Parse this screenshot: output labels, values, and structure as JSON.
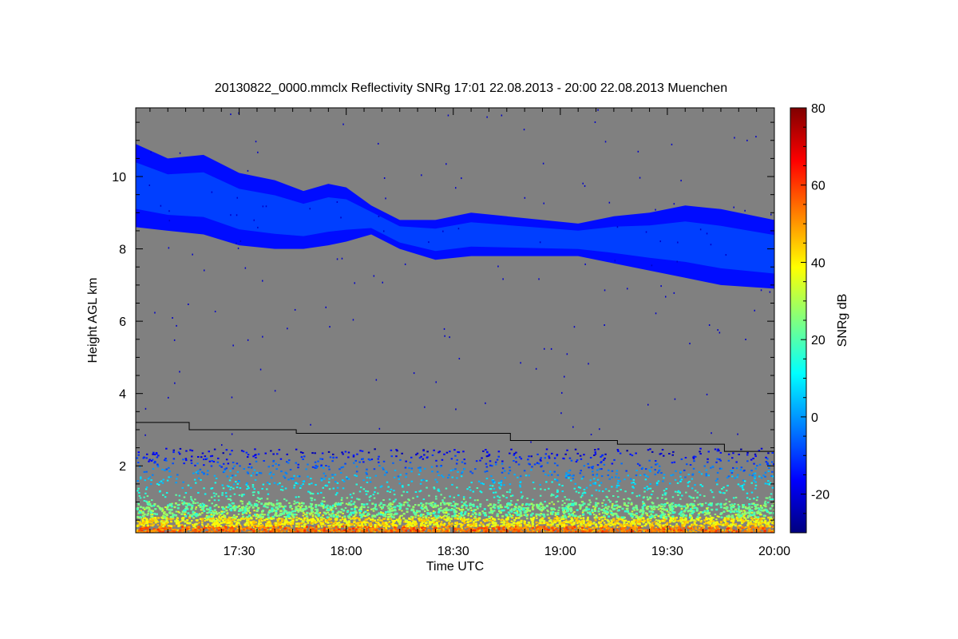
{
  "chart_data": {
    "type": "heatmap",
    "title": "20130822_0000.mmclx Reflectivity SNRg   17:01 22.08.2013 - 20:00 22.08.2013 Muenchen",
    "xlabel": "Time UTC",
    "ylabel": "Height AGL km",
    "colorbar_label": "SNRg dB",
    "x_range_minutes_utc": [
      1021,
      1200
    ],
    "x_ticks": [
      {
        "label": "17:30",
        "minute": 1050
      },
      {
        "label": "18:00",
        "minute": 1080
      },
      {
        "label": "18:30",
        "minute": 1110
      },
      {
        "label": "19:00",
        "minute": 1140
      },
      {
        "label": "19:30",
        "minute": 1170
      },
      {
        "label": "20:00",
        "minute": 1200
      }
    ],
    "y_range_km": [
      0.15,
      11.9
    ],
    "y_ticks": [
      2,
      4,
      6,
      8,
      10
    ],
    "colorbar_range_db": [
      -30,
      80
    ],
    "colorbar_ticks": [
      -20,
      0,
      20,
      40,
      60,
      80
    ],
    "background_color": "#808080",
    "colormap": [
      "#00007f",
      "#0000ff",
      "#0080ff",
      "#00ffff",
      "#80ff80",
      "#ffff00",
      "#ff8000",
      "#ff0000",
      "#7f0000"
    ],
    "cloud_band": {
      "snr_typical_db": -10,
      "points": [
        {
          "minute": 1021,
          "top_km": 10.9,
          "base_km": 8.6
        },
        {
          "minute": 1030,
          "top_km": 10.5,
          "base_km": 8.5
        },
        {
          "minute": 1040,
          "top_km": 10.6,
          "base_km": 8.4
        },
        {
          "minute": 1050,
          "top_km": 10.1,
          "base_km": 8.1
        },
        {
          "minute": 1060,
          "top_km": 9.9,
          "base_km": 8.0
        },
        {
          "minute": 1068,
          "top_km": 9.6,
          "base_km": 8.0
        },
        {
          "minute": 1075,
          "top_km": 9.8,
          "base_km": 8.1
        },
        {
          "minute": 1080,
          "top_km": 9.7,
          "base_km": 8.2
        },
        {
          "minute": 1087,
          "top_km": 9.2,
          "base_km": 8.4
        },
        {
          "minute": 1095,
          "top_km": 8.8,
          "base_km": 8.0
        },
        {
          "minute": 1105,
          "top_km": 8.8,
          "base_km": 7.7
        },
        {
          "minute": 1115,
          "top_km": 9.0,
          "base_km": 7.8
        },
        {
          "minute": 1125,
          "top_km": 8.9,
          "base_km": 7.8
        },
        {
          "minute": 1135,
          "top_km": 8.8,
          "base_km": 7.8
        },
        {
          "minute": 1145,
          "top_km": 8.7,
          "base_km": 7.8
        },
        {
          "minute": 1155,
          "top_km": 8.9,
          "base_km": 7.6
        },
        {
          "minute": 1165,
          "top_km": 9.0,
          "base_km": 7.4
        },
        {
          "minute": 1175,
          "top_km": 9.2,
          "base_km": 7.2
        },
        {
          "minute": 1185,
          "top_km": 9.1,
          "base_km": 7.0
        },
        {
          "minute": 1200,
          "top_km": 8.8,
          "base_km": 6.9
        }
      ]
    },
    "boundary_layer_noise": {
      "top_km": 2.5,
      "dense_top_km": 1.0,
      "surface_snr_db": 50
    },
    "step_line_km": [
      {
        "minute_start": 1021,
        "minute_end": 1036,
        "height_km": 3.2
      },
      {
        "minute_start": 1036,
        "minute_end": 1066,
        "height_km": 3.0
      },
      {
        "minute_start": 1066,
        "minute_end": 1126,
        "height_km": 2.9
      },
      {
        "minute_start": 1126,
        "minute_end": 1156,
        "height_km": 2.7
      },
      {
        "minute_start": 1156,
        "minute_end": 1186,
        "height_km": 2.6
      },
      {
        "minute_start": 1186,
        "minute_end": 1200,
        "height_km": 2.4
      }
    ]
  }
}
